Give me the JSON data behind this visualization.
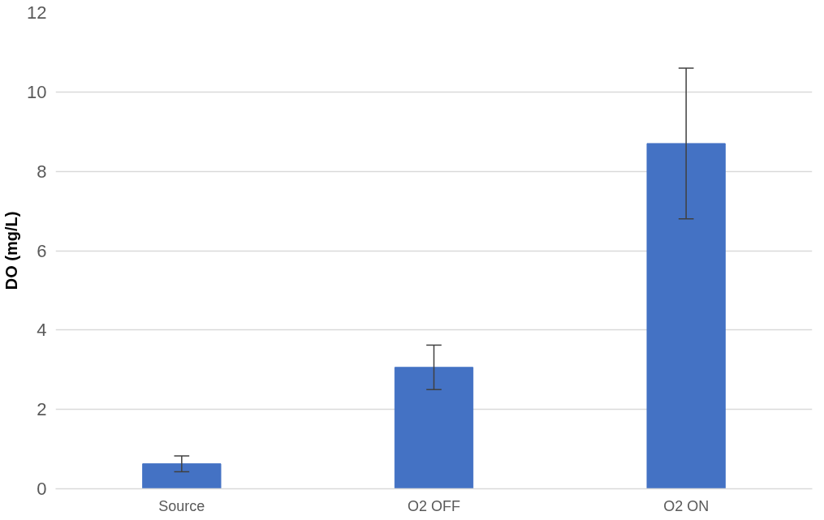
{
  "chart_data": {
    "type": "bar",
    "ylabel": "DO (mg/L)",
    "categories": [
      "Source",
      "O2 OFF",
      "O2 ON"
    ],
    "values": [
      0.63,
      3.06,
      8.7
    ],
    "color": "#4472c4",
    "errors": [
      0.2,
      0.56,
      1.9
    ],
    "ylim": [
      0,
      12
    ],
    "yticks": [
      0,
      2,
      4,
      6,
      8,
      10,
      12
    ],
    "grid": "y"
  }
}
